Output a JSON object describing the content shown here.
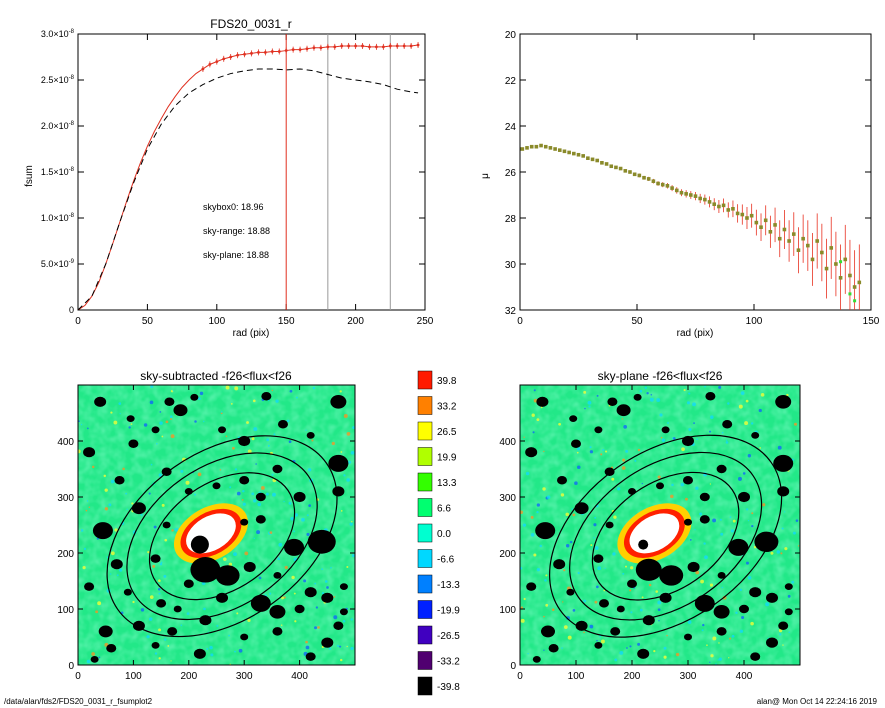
{
  "footer": {
    "path": "/data/alan/fds2/FDS20_0031_r_fsumplot2",
    "stamp": "alan@  Mon Oct 14 22:24:16 2019"
  },
  "chart_data": [
    {
      "type": "line",
      "title": "FDS20_0031_r",
      "xlabel": "rad (pix)",
      "ylabel": "fsum",
      "xlim": [
        0,
        250
      ],
      "ylim": [
        0,
        3e-08
      ],
      "xticks": [
        0,
        50,
        100,
        150,
        200,
        250
      ],
      "yticks": [
        {
          "v": 0,
          "m": "0",
          "e": ""
        },
        {
          "v": 5e-09,
          "m": "5.0×10",
          "e": "-9"
        },
        {
          "v": 1e-08,
          "m": "1.0×10",
          "e": "-8"
        },
        {
          "v": 1.5e-08,
          "m": "1.5×10",
          "e": "-8"
        },
        {
          "v": 2e-08,
          "m": "2.0×10",
          "e": "-8"
        },
        {
          "v": 2.5e-08,
          "m": "2.5×10",
          "e": "-8"
        },
        {
          "v": 3e-08,
          "m": "3.0×10",
          "e": "-8"
        }
      ],
      "series": [
        {
          "style": "solid",
          "color": "#e03020",
          "x": [
            0,
            5,
            10,
            15,
            20,
            25,
            30,
            35,
            40,
            45,
            50,
            55,
            60,
            65,
            70,
            75,
            80,
            85,
            90,
            95,
            100,
            105,
            110,
            115,
            120,
            125,
            130,
            135,
            140,
            145,
            150,
            155,
            160,
            165,
            170,
            175,
            180,
            185,
            190,
            195,
            200,
            205,
            210,
            215,
            220,
            225,
            230,
            235,
            240,
            245
          ],
          "y": [
            0,
            5e-10,
            1.5e-09,
            3e-09,
            5e-09,
            7.2e-09,
            9.5e-09,
            1.18e-08,
            1.4e-08,
            1.6e-08,
            1.78e-08,
            1.94e-08,
            2.08e-08,
            2.21e-08,
            2.32e-08,
            2.42e-08,
            2.5e-08,
            2.57e-08,
            2.62e-08,
            2.67e-08,
            2.7e-08,
            2.73e-08,
            2.75e-08,
            2.77e-08,
            2.78e-08,
            2.79e-08,
            2.8e-08,
            2.8e-08,
            2.81e-08,
            2.81e-08,
            2.82e-08,
            2.83e-08,
            2.83e-08,
            2.84e-08,
            2.85e-08,
            2.85e-08,
            2.86e-08,
            2.86e-08,
            2.87e-08,
            2.87e-08,
            2.87e-08,
            2.87e-08,
            2.86e-08,
            2.86e-08,
            2.86e-08,
            2.87e-08,
            2.87e-08,
            2.87e-08,
            2.87e-08,
            2.88e-08
          ]
        },
        {
          "style": "dashed",
          "color": "#000000",
          "x": [
            0,
            10,
            20,
            30,
            40,
            50,
            60,
            70,
            80,
            90,
            100,
            110,
            120,
            130,
            140,
            150,
            160,
            170,
            180,
            190,
            200,
            210,
            220,
            230,
            240,
            245
          ],
          "y": [
            0,
            1.5e-09,
            5e-09,
            9.5e-09,
            1.38e-08,
            1.75e-08,
            2.02e-08,
            2.22e-08,
            2.36e-08,
            2.45e-08,
            2.52e-08,
            2.57e-08,
            2.6e-08,
            2.62e-08,
            2.62e-08,
            2.61e-08,
            2.62e-08,
            2.6e-08,
            2.56e-08,
            2.52e-08,
            2.5e-08,
            2.48e-08,
            2.45e-08,
            2.4e-08,
            2.37e-08,
            2.36e-08
          ]
        }
      ],
      "vlines": [
        {
          "x": 150,
          "color": "#e03020"
        },
        {
          "x": 180,
          "color": "#999999"
        },
        {
          "x": 225,
          "color": "#999999"
        }
      ],
      "annotations": [
        {
          "text": "skybox0: 18.96",
          "color": "#000000"
        },
        {
          "text": "sky-range: 18.88",
          "color": "#e81818"
        },
        {
          "text": "sky-plane: 18.88",
          "color": "#22dd22"
        }
      ]
    },
    {
      "type": "scatter",
      "title": "",
      "xlabel": "rad (pix)",
      "ylabel": "μ",
      "xlim": [
        0,
        150
      ],
      "ylim": [
        32,
        20
      ],
      "xticks": [
        0,
        50,
        100,
        150
      ],
      "yticks": [
        20,
        22,
        24,
        26,
        28,
        30,
        32
      ],
      "series": [
        {
          "name": "",
          "color": "#8a8a2a",
          "x": [
            1,
            3,
            5,
            7,
            9,
            11,
            13,
            15,
            17,
            19,
            21,
            23,
            25,
            27,
            29,
            31,
            33,
            35,
            37,
            39,
            41,
            43,
            45,
            47,
            49,
            51,
            53,
            55,
            57,
            59,
            61,
            63,
            65,
            67,
            69,
            71,
            73,
            75,
            77,
            79,
            81,
            83,
            85,
            87,
            89,
            91,
            93,
            95,
            97,
            99,
            101,
            103,
            105,
            107,
            109,
            111,
            113,
            115,
            117,
            119,
            121,
            123,
            125,
            127,
            129,
            131,
            133,
            135,
            137,
            139,
            141,
            143,
            145
          ],
          "y": [
            25.0,
            24.95,
            24.9,
            24.9,
            24.85,
            24.9,
            24.95,
            25.0,
            25.05,
            25.1,
            25.15,
            25.2,
            25.25,
            25.3,
            25.4,
            25.45,
            25.5,
            25.6,
            25.65,
            25.75,
            25.8,
            25.85,
            25.95,
            26.0,
            26.1,
            26.15,
            26.25,
            26.3,
            26.4,
            26.5,
            26.55,
            26.6,
            26.7,
            26.8,
            26.9,
            26.95,
            27.0,
            27.05,
            27.15,
            27.2,
            27.3,
            27.4,
            27.5,
            27.45,
            27.65,
            27.6,
            27.8,
            27.85,
            28.0,
            27.9,
            28.2,
            28.4,
            28.1,
            28.6,
            28.3,
            28.9,
            28.5,
            29.0,
            28.7,
            29.4,
            28.9,
            29.2,
            29.8,
            29.0,
            29.5,
            30.2,
            29.3,
            30.0,
            30.6,
            29.8,
            30.5,
            31.0,
            30.8
          ],
          "err": [
            0.02,
            0.02,
            0.02,
            0.02,
            0.02,
            0.02,
            0.02,
            0.02,
            0.02,
            0.03,
            0.03,
            0.03,
            0.03,
            0.03,
            0.03,
            0.04,
            0.04,
            0.04,
            0.05,
            0.05,
            0.05,
            0.06,
            0.06,
            0.07,
            0.07,
            0.08,
            0.08,
            0.09,
            0.1,
            0.1,
            0.11,
            0.12,
            0.13,
            0.14,
            0.15,
            0.16,
            0.17,
            0.18,
            0.2,
            0.22,
            0.24,
            0.26,
            0.28,
            0.3,
            0.33,
            0.36,
            0.4,
            0.44,
            0.48,
            0.52,
            0.56,
            0.6,
            0.65,
            0.7,
            0.75,
            0.8,
            0.85,
            0.9,
            0.95,
            1.0,
            1.05,
            1.1,
            1.15,
            1.2,
            1.25,
            1.3,
            1.35,
            1.4,
            1.45,
            1.5,
            1.55,
            1.6,
            1.65
          ]
        }
      ]
    },
    {
      "type": "heatmap",
      "title": "sky-subtracted -f26<flux<f26",
      "xlim": [
        0,
        500
      ],
      "ylim": [
        0,
        500
      ],
      "xticks": [
        0,
        100,
        200,
        300,
        400
      ],
      "yticks": [
        0,
        100,
        200,
        300,
        400
      ],
      "ellipses": [
        {
          "cx": 260,
          "cy": 230,
          "a": 145,
          "b": 95,
          "angle_deg": 35
        },
        {
          "cx": 260,
          "cy": 230,
          "a": 190,
          "b": 125,
          "angle_deg": 35
        },
        {
          "cx": 260,
          "cy": 230,
          "a": 230,
          "b": 150,
          "angle_deg": 35
        }
      ]
    },
    {
      "type": "heatmap",
      "title": "sky-plane -f26<flux<f26",
      "xlim": [
        0,
        500
      ],
      "ylim": [
        0,
        500
      ],
      "xticks": [
        0,
        100,
        200,
        300,
        400
      ],
      "yticks": [
        0,
        100,
        200,
        300,
        400
      ],
      "ellipses": [
        {
          "cx": 260,
          "cy": 230,
          "a": 145,
          "b": 95,
          "angle_deg": 35
        },
        {
          "cx": 260,
          "cy": 230,
          "a": 190,
          "b": 125,
          "angle_deg": 35
        },
        {
          "cx": 260,
          "cy": 230,
          "a": 230,
          "b": 150,
          "angle_deg": 35
        }
      ]
    }
  ],
  "colorbar": {
    "levels": [
      "39.8",
      "33.2",
      "26.5",
      "19.9",
      "13.3",
      "6.6",
      "0.0",
      "-6.6",
      "-13.3",
      "-19.9",
      "-26.5",
      "-33.2",
      "-39.8"
    ],
    "colors": [
      "#ff1a00",
      "#ff8000",
      "#ffff00",
      "#b0ff00",
      "#33ff00",
      "#00ff70",
      "#00ffd0",
      "#00d8ff",
      "#0080ff",
      "#0020ff",
      "#4000c0",
      "#500070",
      "#000000"
    ]
  }
}
